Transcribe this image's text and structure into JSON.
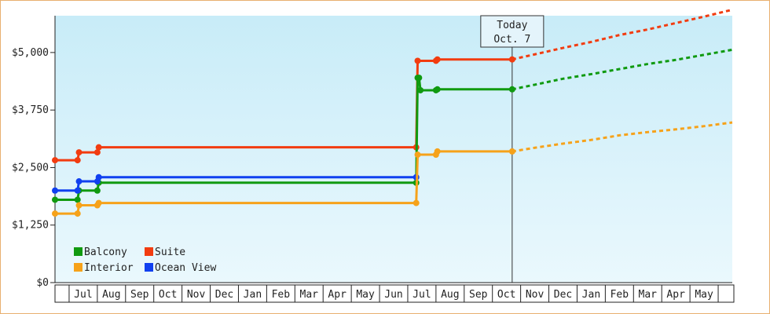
{
  "chart_data": {
    "type": "line",
    "y_ticks": [
      "$0",
      "$1,250",
      "$2,500",
      "$3,750",
      "$5,000"
    ],
    "y_tick_values": [
      0,
      1250,
      2500,
      3750,
      5000
    ],
    "ylim": [
      0,
      5800
    ],
    "x_months": [
      "Jul",
      "Aug",
      "Sep",
      "Oct",
      "Nov",
      "Dec",
      "Jan",
      "Feb",
      "Mar",
      "Apr",
      "May",
      "Jun",
      "Jul",
      "Aug",
      "Sep",
      "Oct",
      "Nov",
      "Dec",
      "Jan",
      "Feb",
      "Mar",
      "Apr",
      "May"
    ],
    "x_start": 0,
    "x_end": 24,
    "today": {
      "label_line1": "Today",
      "label_line2": "Oct. 7",
      "x": 16.2
    },
    "grid": false,
    "legend_position": "bottom-left",
    "colors": {
      "Balcony": "#109a10",
      "Suite": "#f23c10",
      "Interior": "#f6a21a",
      "Ocean View": "#1040f0"
    },
    "series": [
      {
        "name": "Suite",
        "points": [
          [
            0,
            2660
          ],
          [
            0.8,
            2660
          ],
          [
            0.85,
            2830
          ],
          [
            1.5,
            2830
          ],
          [
            1.55,
            2940
          ],
          [
            12.8,
            2940
          ],
          [
            12.85,
            4820
          ],
          [
            13.5,
            4820
          ],
          [
            13.55,
            4850
          ],
          [
            16.2,
            4850
          ]
        ],
        "forecast": [
          [
            16.2,
            4850
          ],
          [
            17.0,
            4960
          ],
          [
            18.0,
            5100
          ],
          [
            19.0,
            5230
          ],
          [
            20.0,
            5380
          ],
          [
            21.0,
            5500
          ],
          [
            22.0,
            5640
          ],
          [
            23.0,
            5780
          ],
          [
            24.0,
            5930
          ]
        ]
      },
      {
        "name": "Balcony",
        "points": [
          [
            0,
            1800
          ],
          [
            0.8,
            1800
          ],
          [
            0.85,
            2000
          ],
          [
            1.5,
            2000
          ],
          [
            1.55,
            2170
          ],
          [
            12.8,
            2170
          ],
          [
            12.85,
            4450
          ],
          [
            12.9,
            4450
          ],
          [
            12.95,
            4180
          ],
          [
            13.5,
            4180
          ],
          [
            13.55,
            4200
          ],
          [
            16.2,
            4200
          ]
        ],
        "forecast": [
          [
            16.2,
            4200
          ],
          [
            17.0,
            4300
          ],
          [
            18.0,
            4430
          ],
          [
            19.0,
            4530
          ],
          [
            20.0,
            4640
          ],
          [
            21.0,
            4750
          ],
          [
            22.0,
            4840
          ],
          [
            23.0,
            4950
          ],
          [
            24.0,
            5060
          ]
        ]
      },
      {
        "name": "Ocean View",
        "points": [
          [
            0,
            2000
          ],
          [
            0.8,
            2000
          ],
          [
            0.85,
            2200
          ],
          [
            1.5,
            2200
          ],
          [
            1.55,
            2290
          ],
          [
            12.8,
            2290
          ]
        ],
        "forecast": []
      },
      {
        "name": "Interior",
        "points": [
          [
            0,
            1500
          ],
          [
            0.8,
            1500
          ],
          [
            0.85,
            1680
          ],
          [
            1.5,
            1680
          ],
          [
            1.55,
            1730
          ],
          [
            12.8,
            1730
          ],
          [
            12.85,
            2780
          ],
          [
            13.5,
            2780
          ],
          [
            13.55,
            2850
          ],
          [
            16.2,
            2850
          ]
        ],
        "forecast": [
          [
            16.2,
            2850
          ],
          [
            17.0,
            2930
          ],
          [
            18.0,
            3020
          ],
          [
            19.0,
            3100
          ],
          [
            20.0,
            3200
          ],
          [
            21.0,
            3270
          ],
          [
            22.0,
            3330
          ],
          [
            23.0,
            3400
          ],
          [
            24.0,
            3480
          ]
        ]
      }
    ]
  }
}
